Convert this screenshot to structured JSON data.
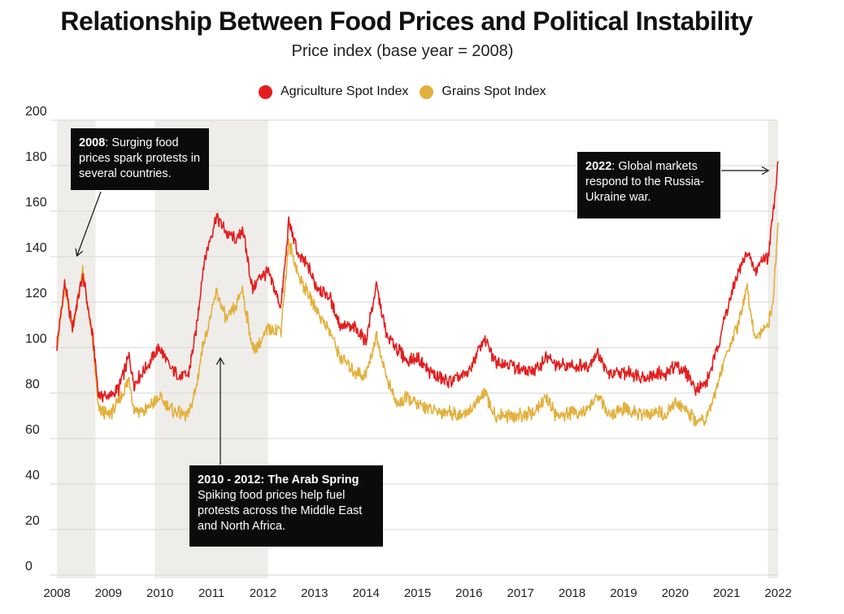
{
  "chart_data": {
    "type": "line",
    "title": "Relationship Between Food Prices and Political Instability",
    "subtitle": "Price index (base year = 2008)",
    "ylim": [
      0,
      200
    ],
    "y_ticks": [
      "0",
      "20",
      "40",
      "60",
      "80",
      "100",
      "120",
      "140",
      "160",
      "180",
      "200"
    ],
    "x_ticks": [
      "2008",
      "2009",
      "2010",
      "2011",
      "2012",
      "2013",
      "2014",
      "2015",
      "2016",
      "2017",
      "2018",
      "2019",
      "2020",
      "2021",
      "2022"
    ],
    "grid": true,
    "legend_position": "top-center",
    "shaded_periods": [
      {
        "from": 2008.0,
        "to": 2008.75
      },
      {
        "from": 2009.9,
        "to": 2012.1
      },
      {
        "from": 2021.8,
        "to": 2022.0
      }
    ],
    "series": [
      {
        "name": "Agriculture Spot Index",
        "color": "#e41e1e",
        "points": [
          [
            2008.0,
            101
          ],
          [
            2008.15,
            128
          ],
          [
            2008.3,
            109
          ],
          [
            2008.5,
            132
          ],
          [
            2008.7,
            104
          ],
          [
            2008.8,
            80
          ],
          [
            2009.0,
            78
          ],
          [
            2009.2,
            82
          ],
          [
            2009.4,
            96
          ],
          [
            2009.5,
            84
          ],
          [
            2009.7,
            90
          ],
          [
            2009.9,
            97
          ],
          [
            2010.0,
            100
          ],
          [
            2010.2,
            91
          ],
          [
            2010.4,
            87
          ],
          [
            2010.55,
            88
          ],
          [
            2010.7,
            107
          ],
          [
            2010.85,
            137
          ],
          [
            2011.0,
            150
          ],
          [
            2011.1,
            158
          ],
          [
            2011.3,
            150
          ],
          [
            2011.5,
            147
          ],
          [
            2011.6,
            153
          ],
          [
            2011.8,
            125
          ],
          [
            2011.95,
            132
          ],
          [
            2012.1,
            133
          ],
          [
            2012.35,
            118
          ],
          [
            2012.5,
            155
          ],
          [
            2012.7,
            140
          ],
          [
            2012.9,
            135
          ],
          [
            2013.0,
            128
          ],
          [
            2013.3,
            122
          ],
          [
            2013.5,
            110
          ],
          [
            2013.8,
            108
          ],
          [
            2014.0,
            103
          ],
          [
            2014.2,
            127
          ],
          [
            2014.4,
            105
          ],
          [
            2014.6,
            100
          ],
          [
            2014.8,
            94
          ],
          [
            2015.0,
            95
          ],
          [
            2015.3,
            88
          ],
          [
            2015.6,
            85
          ],
          [
            2015.85,
            87
          ],
          [
            2016.0,
            90
          ],
          [
            2016.3,
            104
          ],
          [
            2016.5,
            94
          ],
          [
            2016.8,
            93
          ],
          [
            2017.0,
            90
          ],
          [
            2017.3,
            90
          ],
          [
            2017.5,
            96
          ],
          [
            2017.7,
            92
          ],
          [
            2018.0,
            92
          ],
          [
            2018.3,
            92
          ],
          [
            2018.5,
            98
          ],
          [
            2018.7,
            88
          ],
          [
            2019.0,
            89
          ],
          [
            2019.3,
            88
          ],
          [
            2019.5,
            87
          ],
          [
            2019.7,
            89
          ],
          [
            2019.8,
            87
          ],
          [
            2020.0,
            93
          ],
          [
            2020.25,
            88
          ],
          [
            2020.4,
            82
          ],
          [
            2020.6,
            84
          ],
          [
            2020.8,
            98
          ],
          [
            2021.0,
            116
          ],
          [
            2021.2,
            131
          ],
          [
            2021.4,
            142
          ],
          [
            2021.55,
            133
          ],
          [
            2021.7,
            140
          ],
          [
            2021.8,
            139
          ],
          [
            2021.9,
            158
          ],
          [
            2022.0,
            182
          ]
        ]
      },
      {
        "name": "Grains Spot Index",
        "color": "#e3b03c",
        "points": [
          [
            2008.0,
            100
          ],
          [
            2008.15,
            126
          ],
          [
            2008.3,
            108
          ],
          [
            2008.5,
            134
          ],
          [
            2008.7,
            101
          ],
          [
            2008.8,
            74
          ],
          [
            2009.0,
            70
          ],
          [
            2009.2,
            76
          ],
          [
            2009.4,
            86
          ],
          [
            2009.5,
            73
          ],
          [
            2009.7,
            72
          ],
          [
            2009.9,
            76
          ],
          [
            2010.0,
            78
          ],
          [
            2010.2,
            73
          ],
          [
            2010.4,
            71
          ],
          [
            2010.55,
            70
          ],
          [
            2010.7,
            82
          ],
          [
            2010.85,
            103
          ],
          [
            2011.0,
            115
          ],
          [
            2011.1,
            124
          ],
          [
            2011.3,
            112
          ],
          [
            2011.5,
            119
          ],
          [
            2011.6,
            126
          ],
          [
            2011.8,
            99
          ],
          [
            2011.95,
            102
          ],
          [
            2012.1,
            108
          ],
          [
            2012.35,
            108
          ],
          [
            2012.5,
            146
          ],
          [
            2012.7,
            131
          ],
          [
            2012.9,
            123
          ],
          [
            2013.0,
            118
          ],
          [
            2013.3,
            107
          ],
          [
            2013.5,
            96
          ],
          [
            2013.8,
            89
          ],
          [
            2014.0,
            88
          ],
          [
            2014.2,
            105
          ],
          [
            2014.4,
            87
          ],
          [
            2014.6,
            75
          ],
          [
            2014.8,
            78
          ],
          [
            2015.0,
            75
          ],
          [
            2015.3,
            72
          ],
          [
            2015.6,
            72
          ],
          [
            2015.85,
            70
          ],
          [
            2016.0,
            72
          ],
          [
            2016.3,
            80
          ],
          [
            2016.5,
            70
          ],
          [
            2016.8,
            70
          ],
          [
            2017.0,
            70
          ],
          [
            2017.3,
            72
          ],
          [
            2017.5,
            78
          ],
          [
            2017.7,
            70
          ],
          [
            2018.0,
            71
          ],
          [
            2018.3,
            72
          ],
          [
            2018.5,
            79
          ],
          [
            2018.7,
            70
          ],
          [
            2019.0,
            73
          ],
          [
            2019.3,
            71
          ],
          [
            2019.5,
            70
          ],
          [
            2019.7,
            72
          ],
          [
            2019.8,
            70
          ],
          [
            2020.0,
            75
          ],
          [
            2020.25,
            72
          ],
          [
            2020.4,
            68
          ],
          [
            2020.6,
            69
          ],
          [
            2020.8,
            82
          ],
          [
            2021.0,
            98
          ],
          [
            2021.2,
            108
          ],
          [
            2021.4,
            126
          ],
          [
            2021.55,
            104
          ],
          [
            2021.7,
            109
          ],
          [
            2021.8,
            110
          ],
          [
            2021.9,
            120
          ],
          [
            2022.0,
            155
          ]
        ]
      }
    ],
    "annotations": [
      {
        "heading": "2008",
        "text": ": Surging food prices spark protests in several countries."
      },
      {
        "heading": "2022",
        "text": ": Global markets respond to the Russia-Ukraine war."
      },
      {
        "heading": "2010 - 2012: The Arab Spring",
        "text": "Spiking food prices help fuel protests across the Middle East and North Africa."
      }
    ]
  }
}
